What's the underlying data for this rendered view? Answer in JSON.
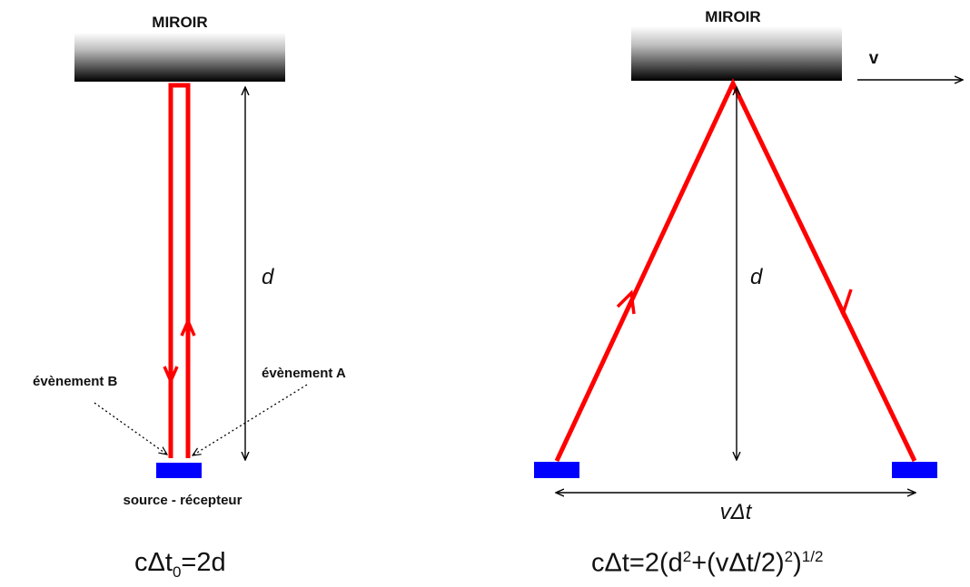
{
  "left_panel": {
    "mirror_label": "MIROIR",
    "distance_label": "d",
    "event_b_label": "évènement B",
    "event_a_label": "évènement A",
    "source_label": "source - récepteur",
    "formula": {
      "c_delta_t": "cΔt",
      "subscript": "0",
      "rhs": "=2d"
    }
  },
  "right_panel": {
    "mirror_label": "MIROIR",
    "velocity_label": "v",
    "distance_label": "d",
    "displacement_label": "vΔt",
    "formula": {
      "part1": "cΔt=2(d",
      "sup1": "2",
      "part2": "+(vΔt/2)",
      "sup2": "2",
      "part3": ")",
      "sup3": "1/2"
    }
  },
  "colors": {
    "light_path": "#ff0000",
    "emitter": "#0000ff",
    "mirror_top": "#ffffff",
    "mirror_bottom": "#000000",
    "arrows": "#000000"
  }
}
